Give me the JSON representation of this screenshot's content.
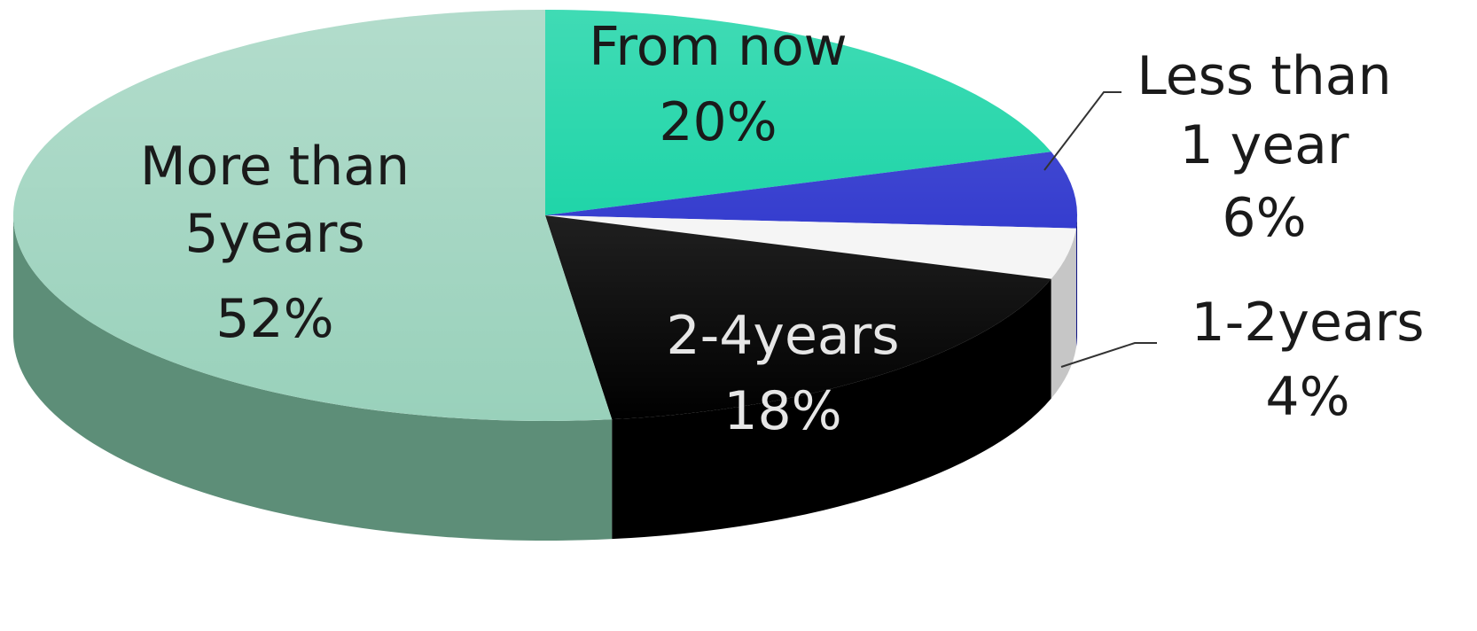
{
  "chart_data": {
    "type": "pie",
    "title": "",
    "slices": [
      {
        "name": "From now",
        "value": 20,
        "value_label": "20%",
        "color": "#00cf9c",
        "side_color": "#009e77",
        "label_color": "#1a1a1a"
      },
      {
        "name": "Less than 1 year",
        "value": 6,
        "value_label": "6%",
        "color": "#1a23c8",
        "side_color": "#0e1480",
        "label_color": "#1a1a1a"
      },
      {
        "name": "1-2years",
        "value": 4,
        "value_label": "4%",
        "color": "#f4f4f4",
        "side_color": "#c6c6c6",
        "label_color": "#1a1a1a"
      },
      {
        "name": "2-4years",
        "value": 18,
        "value_label": "18%",
        "color": "#000000",
        "side_color": "#000000",
        "label_color": "#e6e6e6"
      },
      {
        "name": "More than 5years",
        "value": 52,
        "value_label": "52%",
        "color": "#99d1bb",
        "side_color": "#5d8e78",
        "label_color": "#1a1a1a"
      }
    ],
    "start_angle_deg": 0,
    "direction": "clockwise",
    "style": "3d",
    "legend": "none",
    "label_lines": {
      "from_now": "From now",
      "less_than_1": "Less than",
      "less_than_2": "1 year",
      "one_two": "1-2years",
      "two_four": "2-4years",
      "more_than_1": "More than",
      "more_than_2": "5years"
    }
  }
}
